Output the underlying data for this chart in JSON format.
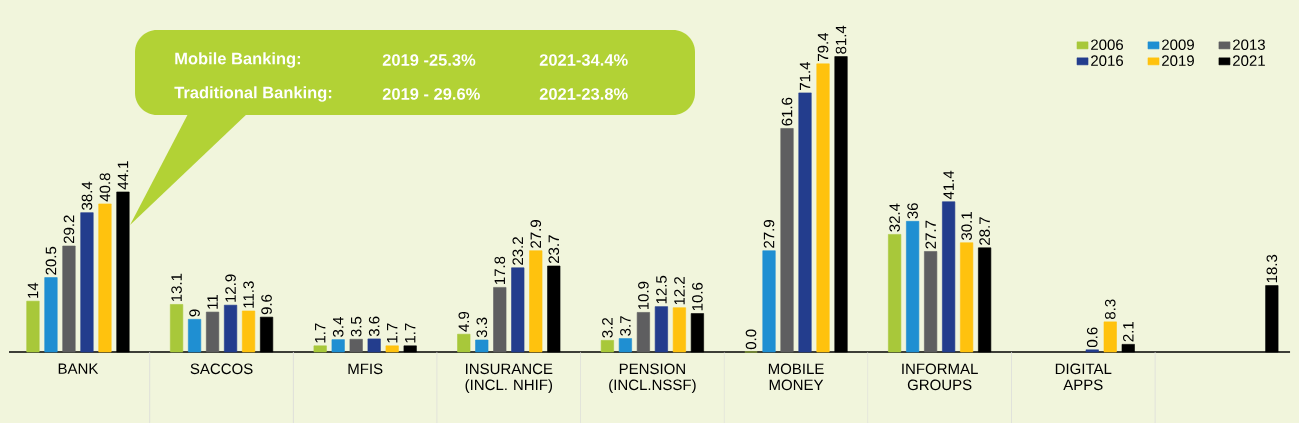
{
  "chart_data": {
    "type": "bar",
    "categories": [
      "BANK",
      "SACCOS",
      "MFIS",
      "INSURANCE (INCL. NHIF)",
      "PENSION (INCL.NSSF)",
      "MOBILE MONEY",
      "INFORMAL GROUPS",
      "DIGITAL APPS",
      null
    ],
    "series": [
      {
        "name": "2006",
        "color": "#a8c83a",
        "values": [
          14,
          13.1,
          1.7,
          4.9,
          3.2,
          0.0,
          32.4,
          null,
          null
        ],
        "value_labels": [
          "14",
          "13.1",
          "1.7",
          "4.9",
          "3.2",
          "0.0",
          "32.4",
          null,
          null
        ]
      },
      {
        "name": "2009",
        "color": "#1f8fd2",
        "values": [
          20.5,
          9,
          3.4,
          3.3,
          3.7,
          27.9,
          36,
          null,
          null
        ],
        "value_labels": [
          "20.5",
          "9",
          "3.4",
          "3.3",
          "3.7",
          "27.9",
          "36",
          null,
          null
        ]
      },
      {
        "name": "2013",
        "color": "#5e5e60",
        "values": [
          29.2,
          11,
          3.5,
          17.8,
          10.9,
          61.6,
          27.7,
          null,
          null
        ],
        "value_labels": [
          "29.2",
          "11",
          "3.5",
          "17.8",
          "10.9",
          "61.6",
          "27.7",
          null,
          null
        ]
      },
      {
        "name": "2016",
        "color": "#233d8d",
        "values": [
          38.4,
          12.9,
          3.6,
          23.2,
          12.5,
          71.4,
          41.4,
          0.6,
          null
        ],
        "value_labels": [
          "38.4",
          "12.9",
          "3.6",
          "23.2",
          "12.5",
          "71.4",
          "41.4",
          "0.6",
          null
        ]
      },
      {
        "name": "2019",
        "color": "#ffc20e",
        "values": [
          40.8,
          11.3,
          1.7,
          27.9,
          12.2,
          79.4,
          30.1,
          8.3,
          null
        ],
        "value_labels": [
          "40.8",
          "11.3",
          "1.7",
          "27.9",
          "12.2",
          "79.4",
          "30.1",
          "8.3",
          null
        ]
      },
      {
        "name": "2021",
        "color": "#000000",
        "values": [
          44.1,
          9.6,
          1.7,
          23.7,
          10.6,
          81.4,
          28.7,
          2.1,
          18.3
        ],
        "value_labels": [
          "44.1",
          "9.6",
          "1.7",
          "23.7",
          "10.6",
          "81.4",
          "28.7",
          "2.1",
          "18.3"
        ]
      }
    ],
    "annotations": [
      "Mobile Banking:",
      "2019 -25.3%",
      "2021-34.4%",
      "Traditional Banking:",
      "2019 - 29.6%",
      "2021-23.8%"
    ],
    "ylim": [
      0,
      97
    ],
    "tick_labels": "x",
    "legend": "top right"
  }
}
